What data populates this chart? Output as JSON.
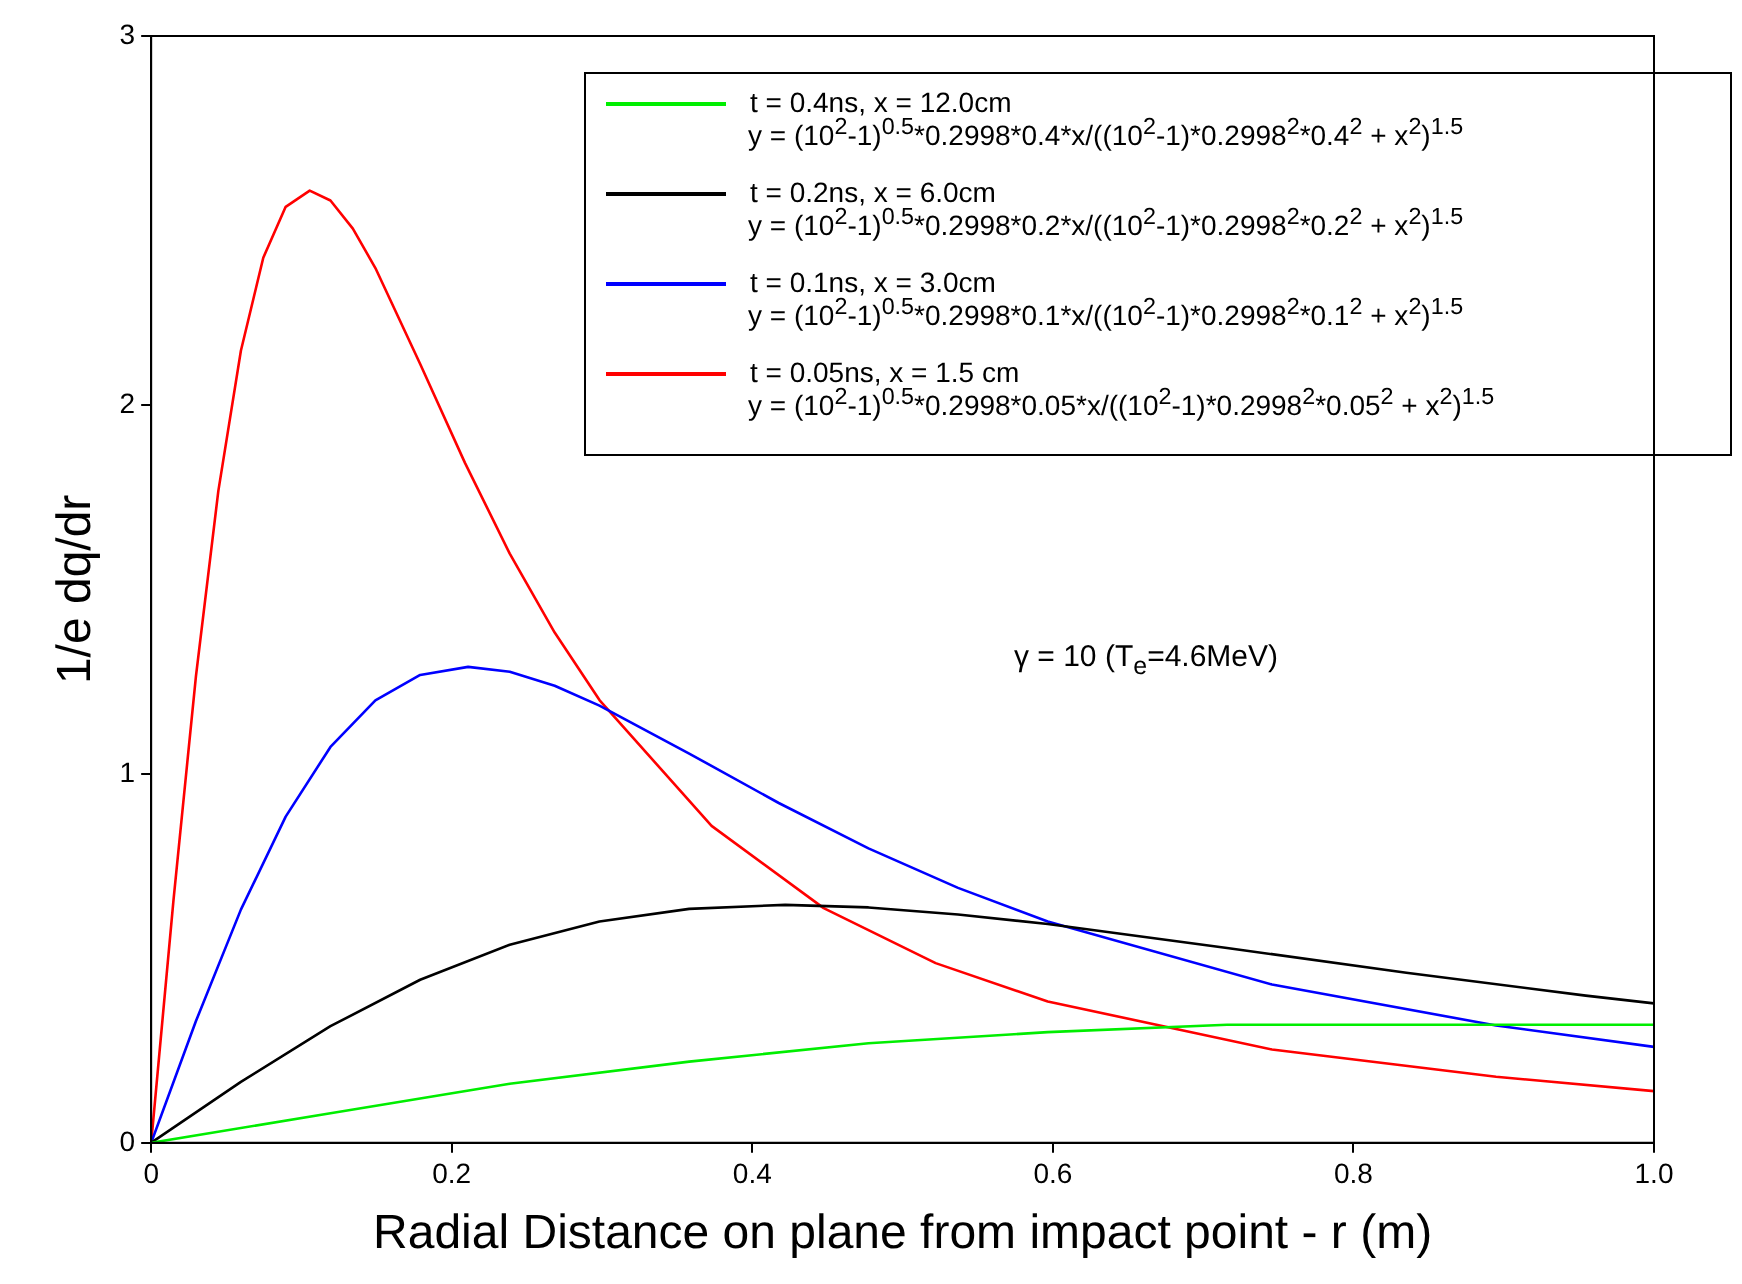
{
  "chart_data": {
    "type": "line",
    "xlabel": "Radial Distance on plane from impact point - r (m)",
    "ylabel": "1/e dq/dr",
    "xlim": [
      0,
      1
    ],
    "xticks": [
      0,
      0.2,
      0.4,
      0.6,
      0.8,
      {
        "value": 1,
        "label": "1.0"
      }
    ],
    "ylim": [
      0,
      3
    ],
    "yticks": [
      0,
      1,
      2,
      3
    ],
    "grid": false,
    "legend": "top",
    "annotations": [
      "y = (10$^{2}$-1)$^{0.5}$*0.2998*0.4*x/((10$^{2}$-1)*0.2998$^{2}$*0.4$^{2}$ + x$^{2}$)$^{1.5}$",
      "y = (10$^{2}$-1)$^{0.5}$*0.2998*0.2*x/((10$^{2}$-1)*0.2998$^{2}$*0.2$^{2}$ + x$^{2}$)$^{1.5}$",
      "y = (10$^{2}$-1)$^{0.5}$*0.2998*0.1*x/((10$^{2}$-1)*0.2998$^{2}$*0.1$^{2}$ + x$^{2}$)$^{1.5}$",
      "y = (10$^{2}$-1)$^{0.5}$*0.2998*0.05*x/((10$^{2}$-1)*0.2998$^{2}$*0.05$^{2}$ + x$^{2}$)$^{1.5}$",
      "γ = 10 (T$_{e}$=4.6MeV)"
    ],
    "series": [
      {
        "name": "t = 0.4ns, x = 12.0cm",
        "color": "#00ee00",
        "x": [
          0,
          0.1193,
          0.2386,
          0.358,
          0.4773,
          0.5966,
          0.7159,
          0.8436,
          0.9546,
          1.0
        ],
        "values": [
          0,
          0.08,
          0.16,
          0.22,
          0.27,
          0.3,
          0.32,
          0.32,
          0.32,
          0.32
        ]
      },
      {
        "name": "t = 0.2ns, x = 6.0cm",
        "color": "#000000",
        "x": [
          0,
          0.0597,
          0.1193,
          0.179,
          0.2386,
          0.2983,
          0.358,
          0.4219,
          0.4773,
          0.5369,
          0.5966,
          0.7159,
          0.8352,
          0.9546,
          1.0
        ],
        "values": [
          0,
          0.165,
          0.316,
          0.442,
          0.537,
          0.6,
          0.634,
          0.645,
          0.638,
          0.619,
          0.593,
          0.528,
          0.461,
          0.399,
          0.378
        ]
      },
      {
        "name": "t = 0.1ns, x = 3.0cm",
        "color": "#0000ff",
        "x": [
          0,
          0.0298,
          0.0597,
          0.0895,
          0.1193,
          0.1492,
          0.179,
          0.2109,
          0.2386,
          0.2685,
          0.2983,
          0.358,
          0.4176,
          0.4773,
          0.5369,
          0.5966,
          0.7458,
          0.8949,
          1.0
        ],
        "values": [
          0,
          0.33,
          0.632,
          0.884,
          1.073,
          1.199,
          1.268,
          1.29,
          1.277,
          1.239,
          1.185,
          1.055,
          0.921,
          0.798,
          0.691,
          0.6,
          0.429,
          0.318,
          0.26
        ]
      },
      {
        "name": "t = 0.05ns, x = 1.5 cm",
        "color": "#ff0000",
        "x": [
          0,
          0.0149,
          0.0298,
          0.0447,
          0.0597,
          0.0746,
          0.0895,
          0.1055,
          0.1193,
          0.1342,
          0.1492,
          0.179,
          0.2088,
          0.2386,
          0.2685,
          0.2983,
          0.3729,
          0.4475,
          0.522,
          0.5966,
          0.7458,
          0.8949,
          1.0
        ],
        "values": [
          0,
          0.66,
          1.265,
          1.767,
          2.147,
          2.399,
          2.537,
          2.581,
          2.554,
          2.478,
          2.371,
          2.111,
          1.843,
          1.597,
          1.383,
          1.2,
          0.859,
          0.636,
          0.487,
          0.383,
          0.253,
          0.179,
          0.14
        ]
      }
    ]
  }
}
